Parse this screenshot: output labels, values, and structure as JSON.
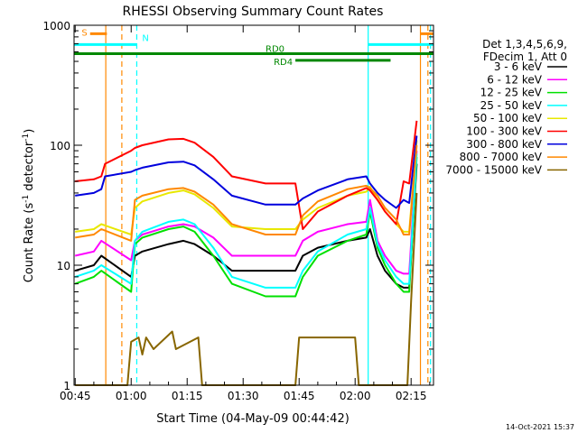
{
  "chart_data": {
    "type": "line",
    "title": "RHESSI Observing Summary Count Rates",
    "xlabel": "Start Time (04-May-09 00:44:42)",
    "ylabel_main": "Count Rate (s",
    "ylabel_sup1": "-1",
    "ylabel_mid": " detector",
    "ylabel_sup2": "-1",
    "ylabel_end": ")",
    "yscale": "log",
    "ylim": [
      1,
      1000
    ],
    "xlim_min": [
      44.7,
      141.0
    ],
    "x_unit": "minutes after 00:00 UT",
    "x_ticks": [
      {
        "v": 45,
        "label": "00:45"
      },
      {
        "v": 60,
        "label": "01:00"
      },
      {
        "v": 75,
        "label": "01:15"
      },
      {
        "v": 90,
        "label": "01:30"
      },
      {
        "v": 105,
        "label": "01:45"
      },
      {
        "v": 120,
        "label": "02:00"
      },
      {
        "v": 135,
        "label": "02:15"
      }
    ],
    "y_ticks": [
      {
        "v": 1,
        "label": "1"
      },
      {
        "v": 10,
        "label": "10"
      },
      {
        "v": 100,
        "label": "100"
      },
      {
        "v": 1000,
        "label": "1000"
      }
    ],
    "legend": {
      "placement": "right",
      "header": [
        "Det 1,3,4,5,6,9,",
        "FDecim 1, Att 0"
      ]
    },
    "series": [
      {
        "name": "3 - 6 keV",
        "color": "#000000",
        "x": [
          45,
          50,
          52,
          60,
          61,
          63,
          70,
          74,
          77,
          82,
          87,
          96,
          104,
          106,
          110,
          118,
          123,
          124,
          126,
          128,
          131,
          133,
          134.5,
          136.5
        ],
        "y": [
          9,
          10,
          12,
          8,
          12,
          13,
          15,
          16,
          15,
          12,
          9,
          9,
          9,
          12,
          14,
          16,
          17,
          20,
          12,
          9,
          7,
          6.5,
          6.5,
          70
        ]
      },
      {
        "name": "6 - 12 keV",
        "color": "#ff00ff",
        "x": [
          45,
          50,
          52,
          60,
          61,
          63,
          70,
          74,
          77,
          82,
          87,
          96,
          104,
          106,
          110,
          118,
          123,
          124,
          126,
          128,
          131,
          133,
          134.5,
          136.5
        ],
        "y": [
          12,
          13,
          16,
          11,
          16,
          18,
          21,
          22,
          21,
          17,
          12,
          12,
          12,
          16,
          19,
          22,
          23,
          35,
          16,
          12,
          9,
          8.5,
          8.5,
          90
        ]
      },
      {
        "name": "12 - 25 keV",
        "color": "#00e000",
        "x": [
          45,
          50,
          52,
          60,
          61,
          63,
          70,
          74,
          77,
          82,
          87,
          96,
          104,
          106,
          110,
          118,
          123,
          124,
          126,
          128,
          131,
          133,
          134.5,
          136.5
        ],
        "y": [
          7,
          8,
          9,
          6,
          15,
          17,
          20,
          21,
          19,
          12,
          7,
          5.5,
          5.5,
          8,
          12,
          16,
          18,
          28,
          14,
          10,
          7,
          6,
          6,
          80
        ]
      },
      {
        "name": "25 - 50 keV",
        "color": "#00ffff",
        "x": [
          45,
          50,
          52,
          60,
          61,
          63,
          70,
          74,
          77,
          82,
          87,
          96,
          104,
          106,
          110,
          118,
          123,
          124,
          126,
          128,
          131,
          133,
          134.5,
          136.5
        ],
        "y": [
          8,
          9,
          10,
          7,
          16,
          19,
          23,
          24,
          22,
          14,
          8,
          6.5,
          6.5,
          9,
          13,
          18,
          20,
          30,
          15,
          11,
          8,
          7,
          7,
          85
        ]
      },
      {
        "name": "50 - 100 keV",
        "color": "#e8e800",
        "x": [
          45,
          50,
          52,
          60,
          61,
          63,
          70,
          74,
          77,
          82,
          87,
          96,
          104,
          106,
          110,
          118,
          123,
          124,
          126,
          128,
          131,
          133,
          134.5,
          136.5
        ],
        "y": [
          19,
          20,
          22,
          18,
          30,
          34,
          40,
          42,
          39,
          30,
          21,
          20,
          20,
          24,
          30,
          38,
          41,
          45,
          35,
          28,
          22,
          19,
          19,
          110
        ]
      },
      {
        "name": "100 - 300 keV",
        "color": "#ff0000",
        "x": [
          45,
          50,
          52,
          53,
          60,
          61,
          63,
          70,
          74,
          77,
          82,
          87,
          96,
          104,
          106,
          110,
          118,
          123,
          124,
          126,
          128,
          131,
          133,
          134.5,
          136.5
        ],
        "y": [
          50,
          52,
          55,
          70,
          90,
          95,
          100,
          112,
          113,
          105,
          80,
          55,
          48,
          48,
          20,
          28,
          38,
          44,
          42,
          35,
          28,
          22,
          50,
          48,
          160
        ]
      },
      {
        "name": "300 - 800 keV",
        "color": "#0000dd",
        "x": [
          45,
          50,
          52,
          53,
          60,
          61,
          63,
          70,
          74,
          77,
          82,
          87,
          96,
          104,
          106,
          110,
          118,
          123,
          124,
          126,
          128,
          131,
          133,
          134.5,
          136.5
        ],
        "y": [
          38,
          40,
          43,
          55,
          60,
          62,
          65,
          72,
          73,
          68,
          52,
          38,
          32,
          32,
          36,
          42,
          52,
          55,
          48,
          40,
          35,
          30,
          35,
          33,
          120
        ]
      },
      {
        "name": "800 - 7000 keV",
        "color": "#ff8800",
        "x": [
          45,
          50,
          52,
          60,
          61,
          63,
          70,
          74,
          77,
          82,
          87,
          96,
          104,
          106,
          110,
          118,
          123,
          124,
          126,
          128,
          131,
          133,
          134.5,
          136.5
        ],
        "y": [
          17,
          18,
          20,
          16,
          35,
          38,
          43,
          44,
          41,
          32,
          22,
          18,
          18,
          26,
          34,
          43,
          46,
          44,
          38,
          30,
          24,
          18,
          18,
          100
        ]
      },
      {
        "name": "7000 - 15000 keV",
        "color": "#886600",
        "x": [
          45,
          59,
          60,
          62,
          63,
          64,
          66,
          71,
          72,
          78,
          79,
          104,
          105,
          120,
          121,
          134,
          135,
          136.5
        ],
        "y": [
          1,
          1,
          2.3,
          2.5,
          1.8,
          2.5,
          2,
          2.8,
          2,
          2.5,
          1,
          1,
          2.5,
          2.5,
          1,
          1,
          5,
          40
        ]
      }
    ],
    "annotations": [
      {
        "label": "S",
        "color": "#ff8800",
        "kind": "bar",
        "x0": 49,
        "x1": 53.5,
        "y": 850
      },
      {
        "label": "N",
        "color": "#00ffff",
        "kind": "bar",
        "x0": 44.7,
        "x1": 61.5,
        "y": 690
      },
      {
        "label": "",
        "color": "#00ffff",
        "kind": "bar",
        "x0": 123.5,
        "x1": 141,
        "y": 690
      },
      {
        "label": "",
        "color": "#ff8800",
        "kind": "bar",
        "x0": 137.5,
        "x1": 141,
        "y": 850
      },
      {
        "label": "RD0",
        "color": "#008800",
        "kind": "bar",
        "x0": 44.7,
        "x1": 137.5,
        "y": 580
      },
      {
        "label": "RD4",
        "color": "#008800",
        "kind": "bar",
        "x0": 104,
        "x1": 129.5,
        "y": 510
      },
      {
        "label": "",
        "color": "#008800",
        "kind": "bar",
        "x0": 129.5,
        "x1": 141,
        "y": 580
      }
    ],
    "vlines": [
      {
        "x": 53.2,
        "color": "#ff8800",
        "style": "solid"
      },
      {
        "x": 57.5,
        "color": "#ff8800",
        "style": "dashed"
      },
      {
        "x": 61.5,
        "color": "#00ffff",
        "style": "dashed"
      },
      {
        "x": 123.5,
        "color": "#00ffff",
        "style": "solid"
      },
      {
        "x": 137.5,
        "color": "#ff8800",
        "style": "solid"
      },
      {
        "x": 139.5,
        "color": "#ff8800",
        "style": "dashed"
      },
      {
        "x": 140.2,
        "color": "#00ffff",
        "style": "dashed"
      }
    ],
    "footer": "14-Oct-2021 15:37"
  }
}
